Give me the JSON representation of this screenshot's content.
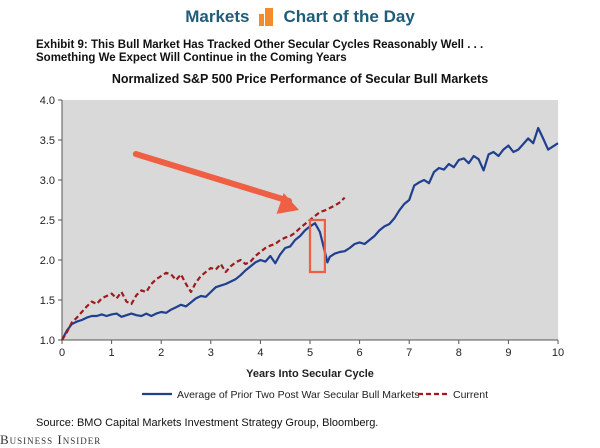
{
  "banner": {
    "left": "Markets",
    "right": "Chart of the Day"
  },
  "exhibit": {
    "line1": "Exhibit 9: This Bull Market Has Tracked Other Secular Cycles Reasonably Well . . .",
    "line2": "Something We Expect Will Continue in the Coming Years"
  },
  "source": "Source: BMO Capital Markets Investment Strategy Group, Bloomberg.",
  "brand": "Business Insider",
  "colors": {
    "plot_bg": "#d9d9d9",
    "series_average": "#1f3f8f",
    "series_current": "#9b1c1c",
    "annotation": "#ef5f44"
  },
  "annotation": {
    "arrow_from": [
      3.0,
      3.2
    ],
    "arrow_to": [
      4.9,
      2.55
    ],
    "box_x": [
      5.0,
      5.3
    ],
    "box_y": [
      1.85,
      2.5
    ]
  },
  "chart_data": {
    "type": "line",
    "title": "Normalized S&P 500 Price Performance of Secular Bull Markets",
    "xlabel": "Years Into Secular Cycle",
    "ylabel": "",
    "xlim": [
      0,
      10
    ],
    "ylim": [
      1.0,
      4.0
    ],
    "xticks": [
      "0",
      "1",
      "2",
      "3",
      "4",
      "5",
      "6",
      "7",
      "8",
      "9",
      "10"
    ],
    "yticks": [
      "1.0",
      "1.5",
      "2.0",
      "2.5",
      "3.0",
      "3.5",
      "4.0"
    ],
    "grid": false,
    "legend_position": "bottom",
    "series": [
      {
        "name": "Average of Prior Two Post War Secular Bull Markets",
        "style": "solid",
        "x": [
          0,
          0.1,
          0.2,
          0.3,
          0.4,
          0.5,
          0.6,
          0.7,
          0.8,
          0.9,
          1.0,
          1.1,
          1.2,
          1.3,
          1.4,
          1.5,
          1.6,
          1.7,
          1.8,
          1.9,
          2.0,
          2.1,
          2.2,
          2.3,
          2.4,
          2.5,
          2.6,
          2.7,
          2.8,
          2.9,
          3.0,
          3.1,
          3.2,
          3.3,
          3.4,
          3.5,
          3.6,
          3.7,
          3.8,
          3.9,
          4.0,
          4.1,
          4.2,
          4.3,
          4.4,
          4.5,
          4.6,
          4.7,
          4.8,
          4.9,
          5.0,
          5.1,
          5.2,
          5.3,
          5.35,
          5.4,
          5.5,
          5.6,
          5.7,
          5.8,
          5.9,
          6.0,
          6.1,
          6.2,
          6.3,
          6.4,
          6.5,
          6.6,
          6.7,
          6.8,
          6.9,
          7.0,
          7.1,
          7.2,
          7.3,
          7.4,
          7.5,
          7.6,
          7.7,
          7.8,
          7.9,
          8.0,
          8.1,
          8.2,
          8.3,
          8.4,
          8.5,
          8.6,
          8.7,
          8.8,
          8.9,
          9.0,
          9.1,
          9.2,
          9.3,
          9.4,
          9.5,
          9.6,
          9.7,
          9.8,
          9.9,
          10.0
        ],
        "y": [
          1.0,
          1.12,
          1.2,
          1.23,
          1.25,
          1.28,
          1.3,
          1.3,
          1.32,
          1.3,
          1.32,
          1.33,
          1.29,
          1.31,
          1.33,
          1.31,
          1.3,
          1.33,
          1.3,
          1.33,
          1.35,
          1.34,
          1.38,
          1.41,
          1.44,
          1.42,
          1.47,
          1.52,
          1.55,
          1.54,
          1.6,
          1.66,
          1.68,
          1.7,
          1.73,
          1.76,
          1.81,
          1.87,
          1.92,
          1.97,
          2.0,
          1.98,
          2.05,
          1.96,
          2.07,
          2.15,
          2.17,
          2.25,
          2.3,
          2.37,
          2.42,
          2.46,
          2.35,
          2.1,
          1.97,
          2.04,
          2.08,
          2.1,
          2.11,
          2.15,
          2.2,
          2.22,
          2.2,
          2.25,
          2.3,
          2.37,
          2.42,
          2.45,
          2.52,
          2.62,
          2.7,
          2.75,
          2.93,
          2.97,
          3.0,
          2.96,
          3.1,
          3.15,
          3.13,
          3.2,
          3.16,
          3.25,
          3.27,
          3.21,
          3.3,
          3.26,
          3.12,
          3.32,
          3.35,
          3.3,
          3.38,
          3.43,
          3.35,
          3.38,
          3.45,
          3.52,
          3.46,
          3.65,
          3.52,
          3.38,
          3.42,
          3.46
        ]
      },
      {
        "name": "Current",
        "style": "dashed",
        "x": [
          0,
          0.1,
          0.2,
          0.3,
          0.4,
          0.5,
          0.6,
          0.7,
          0.8,
          0.9,
          1.0,
          1.1,
          1.2,
          1.3,
          1.4,
          1.5,
          1.6,
          1.7,
          1.8,
          1.9,
          2.0,
          2.1,
          2.2,
          2.3,
          2.4,
          2.5,
          2.6,
          2.7,
          2.8,
          2.9,
          3.0,
          3.1,
          3.2,
          3.3,
          3.4,
          3.5,
          3.6,
          3.7,
          3.8,
          3.9,
          4.0,
          4.1,
          4.2,
          4.3,
          4.4,
          4.5,
          4.6,
          4.7,
          4.8,
          4.9,
          5.0,
          5.1,
          5.2,
          5.3,
          5.4,
          5.5,
          5.6,
          5.7
        ],
        "y": [
          1.0,
          1.1,
          1.22,
          1.28,
          1.35,
          1.42,
          1.48,
          1.45,
          1.52,
          1.55,
          1.58,
          1.52,
          1.6,
          1.48,
          1.45,
          1.56,
          1.62,
          1.6,
          1.7,
          1.76,
          1.8,
          1.84,
          1.82,
          1.75,
          1.82,
          1.7,
          1.6,
          1.72,
          1.8,
          1.85,
          1.9,
          1.88,
          1.95,
          1.85,
          1.92,
          1.97,
          2.0,
          1.95,
          1.98,
          2.05,
          2.1,
          2.15,
          2.18,
          2.2,
          2.25,
          2.28,
          2.3,
          2.34,
          2.4,
          2.45,
          2.5,
          2.55,
          2.6,
          2.62,
          2.65,
          2.68,
          2.72,
          2.78
        ]
      }
    ]
  }
}
